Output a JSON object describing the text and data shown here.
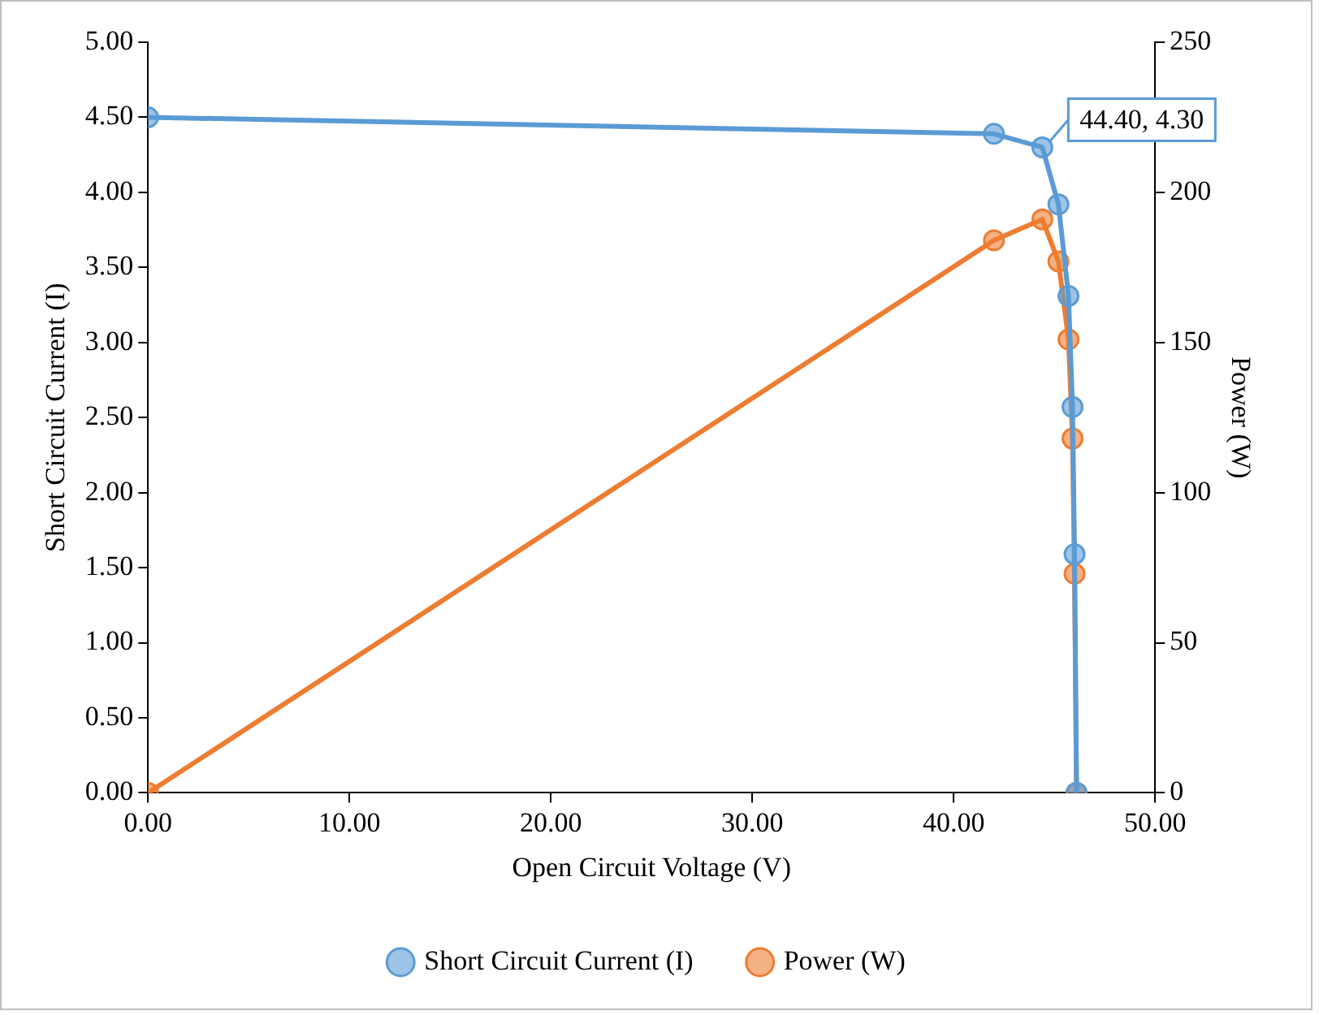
{
  "chart_data": {
    "type": "line",
    "xlabel": "Open Circuit Voltage (V)",
    "ylabel": "Short Circuit Current (I)",
    "y2label": "Power (W)",
    "x": [
      0,
      42.0,
      44.4,
      45.2,
      45.7,
      45.9,
      46.0,
      46.1
    ],
    "series": [
      {
        "name": "Short Circuit Current (I)",
        "color": "#5b9bd5",
        "values": [
          4.5,
          4.39,
          4.3,
          3.92,
          3.31,
          2.57,
          1.59,
          0
        ]
      },
      {
        "name": "Power (W)",
        "color": "#ed7d31",
        "axis": "y2",
        "values": [
          0,
          184,
          191,
          177,
          151,
          118,
          73,
          0
        ]
      }
    ],
    "xlim": [
      0,
      50
    ],
    "xticks": [
      {
        "value": 0,
        "label": "0.00"
      },
      {
        "value": 10,
        "label": "10.00"
      },
      {
        "value": 20,
        "label": "20.00"
      },
      {
        "value": 30,
        "label": "30.00"
      },
      {
        "value": 40,
        "label": "40.00"
      },
      {
        "value": 50,
        "label": "50.00"
      }
    ],
    "ylim": [
      0,
      5
    ],
    "yticks": [
      {
        "value": 0,
        "label": "0.00"
      },
      {
        "value": 0.5,
        "label": "0.50"
      },
      {
        "value": 1,
        "label": "1.00"
      },
      {
        "value": 1.5,
        "label": "1.50"
      },
      {
        "value": 2,
        "label": "2.00"
      },
      {
        "value": 2.5,
        "label": "2.50"
      },
      {
        "value": 3,
        "label": "3.00"
      },
      {
        "value": 3.5,
        "label": "3.50"
      },
      {
        "value": 4,
        "label": "4.00"
      },
      {
        "value": 4.5,
        "label": "4.50"
      },
      {
        "value": 5,
        "label": "5.00"
      }
    ],
    "y2lim": [
      0,
      250
    ],
    "y2ticks": [
      0,
      50,
      100,
      150,
      200,
      250
    ],
    "annotations": [
      {
        "text": "44.40, 4.30",
        "x": 44.4,
        "y": 4.3
      }
    ],
    "marker": "circle",
    "line_style": "solid",
    "legend": "bottom",
    "grid": false
  }
}
